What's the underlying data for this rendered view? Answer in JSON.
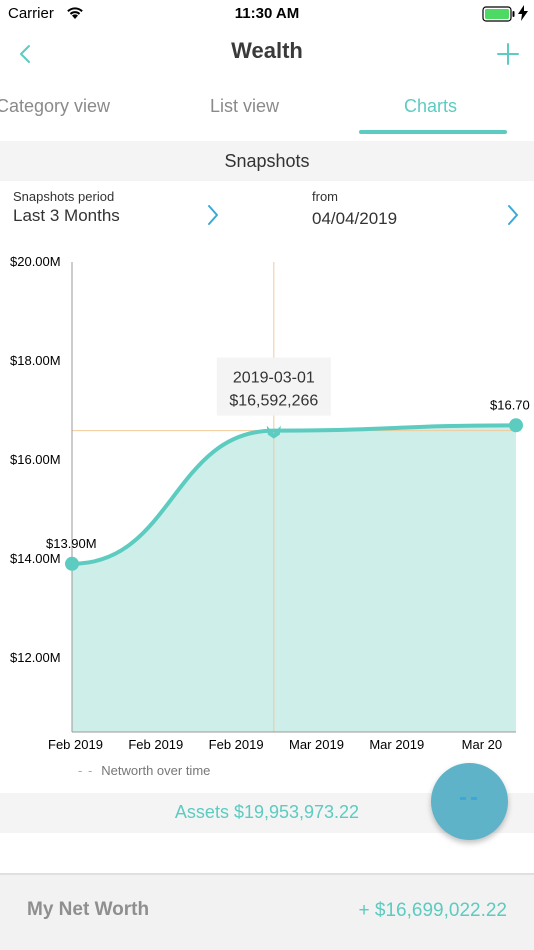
{
  "status": {
    "carrier": "Carrier",
    "time": "11:30 AM"
  },
  "nav": {
    "title": "Wealth"
  },
  "tabs": [
    {
      "label": "Category view",
      "active": false
    },
    {
      "label": "List view",
      "active": false
    },
    {
      "label": "Charts",
      "active": true
    }
  ],
  "section": {
    "title": "Snapshots"
  },
  "period": {
    "label": "Snapshots period",
    "value": "Last 3 Months"
  },
  "from": {
    "label": "from",
    "value": "04/04/2019"
  },
  "colors": {
    "accent": "#5ccbc0",
    "fill": "#cdeee9",
    "crosshair": "#f2c99a",
    "fab": "#5eb3c9"
  },
  "chart_data": {
    "type": "area",
    "x_labels": [
      "Feb 2019",
      "Feb 2019",
      "Feb 2019",
      "Mar 2019",
      "Mar 2019",
      "Mar 20"
    ],
    "y_ticks": [
      "$20.00M",
      "$18.00M",
      "$16.00M",
      "$14.00M",
      "$12.00M"
    ],
    "ylim": [
      10.5,
      20
    ],
    "series": [
      {
        "name": "Networth over time",
        "points": [
          {
            "x": "2019-02-04",
            "y": 13.9
          },
          {
            "x": "2019-03-01",
            "y": 16.592266
          },
          {
            "x": "2019-03-31",
            "y": 16.699022
          }
        ]
      }
    ],
    "point_labels": {
      "first": "$13.90M",
      "last": "$16.70"
    },
    "tooltip": {
      "date": "2019-03-01",
      "value": "$16,592,266"
    },
    "grid": false,
    "legend": "bottom-left"
  },
  "assets": {
    "text": "Assets $19,953,973.22"
  },
  "footer": {
    "label": "My Net Worth",
    "value": "+ $16,699,022.22"
  }
}
